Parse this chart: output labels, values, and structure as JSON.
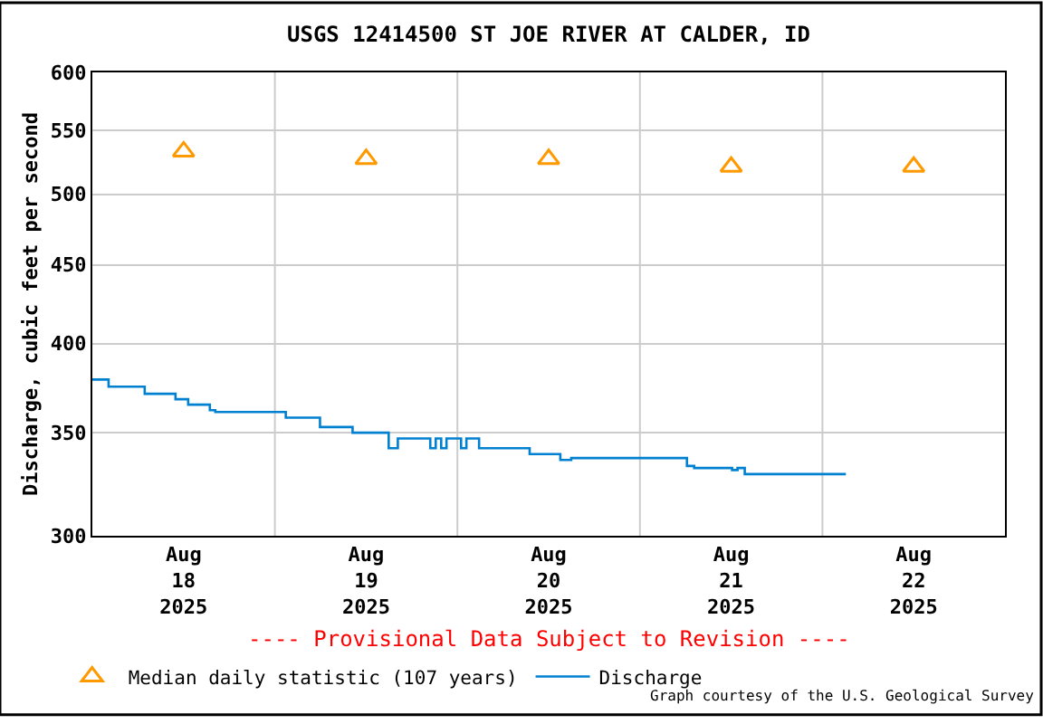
{
  "chart_data": {
    "type": "step",
    "title": "USGS 12414500 ST JOE RIVER AT CALDER, ID",
    "ylabel": "Discharge, cubic feet per second",
    "log": "y",
    "grid": true,
    "legend": "bottom",
    "xlim": [
      "2025-08-18T00:00",
      "2025-08-23T00:00"
    ],
    "xticks": [
      {
        "value": "2025-08-18T12:00",
        "label": "Aug\n18\n2025"
      },
      {
        "value": "2025-08-19T00:00",
        "label": null
      },
      {
        "value": "2025-08-19T12:00",
        "label": "Aug\n19\n2025"
      },
      {
        "value": "2025-08-20T00:00",
        "label": null
      },
      {
        "value": "2025-08-20T12:00",
        "label": "Aug\n20\n2025"
      },
      {
        "value": "2025-08-21T00:00",
        "label": null
      },
      {
        "value": "2025-08-21T12:00",
        "label": "Aug\n21\n2025"
      },
      {
        "value": "2025-08-22T00:00",
        "label": null
      },
      {
        "value": "2025-08-22T12:00",
        "label": "Aug\n22\n2025"
      }
    ],
    "ylim": [
      300,
      600
    ],
    "yticks": [
      300,
      350,
      400,
      450,
      500,
      550,
      600
    ],
    "series": [
      {
        "name": "Median daily statistic (107 years)",
        "type": "scatter",
        "marker": "triangle",
        "color": "#ff9900",
        "x": [
          "2025-08-18T12:00",
          "2025-08-19T12:00",
          "2025-08-20T12:00",
          "2025-08-21T12:00",
          "2025-08-22T12:00"
        ],
        "values": [
          533,
          527,
          527,
          521,
          521
        ]
      },
      {
        "name": "Discharge",
        "color": "#0080d0",
        "x": [
          "2025-08-18T00:00",
          "2025-08-18T02:08",
          "2025-08-18T06:53",
          "2025-08-18T10:56",
          "2025-08-18T12:36",
          "2025-08-18T15:27",
          "2025-08-18T16:10",
          "2025-08-19T01:26",
          "2025-08-19T05:56",
          "2025-08-19T10:13",
          "2025-08-19T14:58",
          "2025-08-19T16:10",
          "2025-08-19T20:26",
          "2025-08-19T21:09",
          "2025-08-19T21:52",
          "2025-08-19T22:34",
          "2025-08-20T00:29",
          "2025-08-20T01:11",
          "2025-08-20T02:51",
          "2025-08-20T09:30",
          "2025-08-20T13:32",
          "2025-08-20T14:58",
          "2025-08-21T06:11",
          "2025-08-21T07:08",
          "2025-08-21T12:07",
          "2025-08-21T12:50",
          "2025-08-21T13:47",
          "2025-08-22T03:05"
        ],
        "values": [
          379,
          375,
          371,
          368,
          365,
          362,
          361,
          358,
          353,
          350,
          342,
          347,
          342,
          347,
          342,
          347,
          342,
          347,
          342,
          339,
          336,
          337,
          333,
          332,
          331,
          332,
          329,
          329
        ]
      }
    ],
    "annotations": [
      "---- Provisional Data Subject to Revision ----",
      "Graph courtesy of the U.S. Geological Survey"
    ]
  }
}
